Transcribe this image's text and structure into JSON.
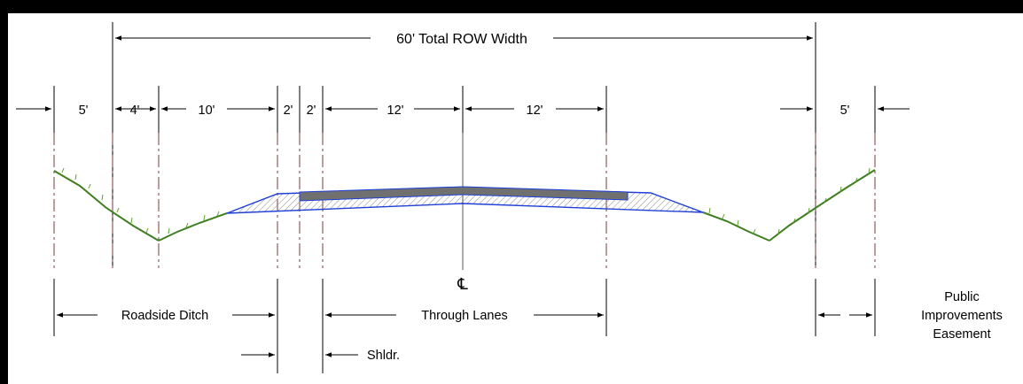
{
  "diagram": {
    "total_row_label": "60' Total ROW Width",
    "segments": [
      {
        "label": "5'"
      },
      {
        "label": "4'"
      },
      {
        "label": "10'"
      },
      {
        "label": "2'"
      },
      {
        "label": "2'"
      },
      {
        "label": "12'"
      },
      {
        "label": "12'"
      },
      {
        "label": "5'"
      }
    ],
    "centerline_label": "℄",
    "zones": {
      "roadside_ditch": "Roadside Ditch",
      "through_lanes": "Through Lanes",
      "shoulder": "Shldr.",
      "easement_line1": "Public",
      "easement_line2": "Improvements",
      "easement_line3": "Easement"
    },
    "colors": {
      "frame": "#000000",
      "edge_blue": "#1f3fd6",
      "pavement_gray": "#707070",
      "grass_green": "#3f7f1f",
      "hatch": "#8a8a8a"
    }
  }
}
